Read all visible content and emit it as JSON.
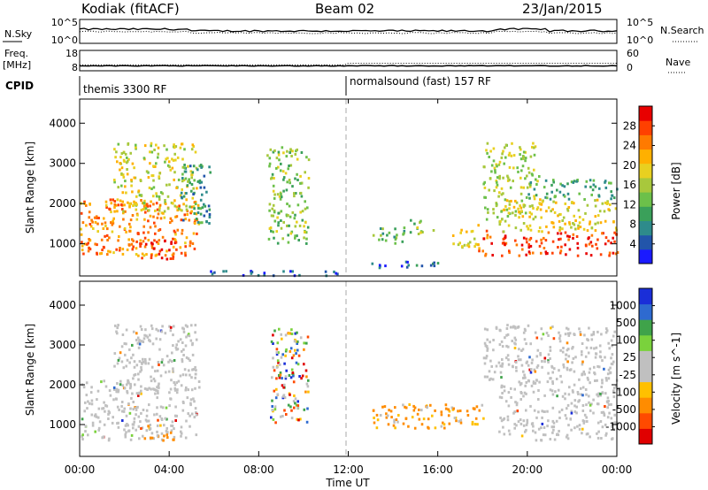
{
  "header": {
    "station": "Kodiak (fitACF)",
    "beam": "Beam 02",
    "date": "23/Jan/2015"
  },
  "noise_panel": {
    "left_label": "N.Sky",
    "right_label": "N.Search",
    "left_ticks": [
      "10^5",
      "10^0"
    ],
    "right_ticks": [
      "10^5",
      "10^0"
    ]
  },
  "freq_panel": {
    "left_label_1": "Freq.",
    "left_label_2": "[MHz]",
    "left_ticks": [
      "18",
      "8"
    ],
    "right_label": "Nave",
    "right_ticks": [
      "60",
      "0"
    ]
  },
  "cpid_panel": {
    "label": "CPID",
    "segments": [
      "themis 3300 RF",
      "normalsound (fast) 157 RF"
    ]
  },
  "x_axis": {
    "label": "Time UT",
    "tick_labels": [
      "00:00",
      "04:00",
      "08:00",
      "12:00",
      "16:00",
      "20:00",
      "00:00"
    ]
  },
  "chart_data": [
    {
      "type": "heatmap",
      "name": "Power",
      "ylabel": "Slant Range [km]",
      "yticks": [
        "1000",
        "2000",
        "3000",
        "4000"
      ],
      "ylim": [
        200,
        4600
      ],
      "xlim_hours": [
        0,
        24
      ],
      "colorbar": {
        "label": "Power [dB]",
        "ticks": [
          "4",
          "8",
          "12",
          "16",
          "20",
          "24",
          "28"
        ],
        "range": [
          0,
          30
        ],
        "colors": [
          "#1a1aff",
          "#2255aa",
          "#2e8b8b",
          "#3aa05a",
          "#6cc04a",
          "#a8c83c",
          "#e8d020",
          "#ffb000",
          "#ff7a00",
          "#ff4000",
          "#e80000"
        ]
      },
      "regions": [
        {
          "t": [
            0.0,
            5.3
          ],
          "r": [
            700,
            2100
          ],
          "level": 0.78
        },
        {
          "t": [
            1.5,
            5.2
          ],
          "r": [
            1800,
            3500
          ],
          "level": 0.55
        },
        {
          "t": [
            2.5,
            4.3
          ],
          "r": [
            600,
            1100
          ],
          "level": 0.95
        },
        {
          "t": [
            4.5,
            5.8
          ],
          "r": [
            1500,
            3000
          ],
          "level": 0.25
        },
        {
          "t": [
            8.3,
            10.2
          ],
          "r": [
            1000,
            3400
          ],
          "level": 0.45
        },
        {
          "t": [
            13.0,
            14.6
          ],
          "r": [
            1000,
            1400
          ],
          "level": 0.35
        },
        {
          "t": [
            14.5,
            15.8
          ],
          "r": [
            1200,
            1600
          ],
          "level": 0.45
        },
        {
          "t": [
            16.5,
            17.8
          ],
          "r": [
            900,
            1500
          ],
          "level": 0.6
        },
        {
          "t": [
            17.8,
            18.5
          ],
          "r": [
            700,
            1400
          ],
          "level": 0.85
        },
        {
          "t": [
            18.0,
            20.5
          ],
          "r": [
            1600,
            3500
          ],
          "level": 0.5
        },
        {
          "t": [
            18.7,
            24.0
          ],
          "r": [
            700,
            1300
          ],
          "level": 0.92
        },
        {
          "t": [
            18.7,
            24.0
          ],
          "r": [
            1300,
            2100
          ],
          "level": 0.6
        },
        {
          "t": [
            20.0,
            24.0
          ],
          "r": [
            2100,
            2600
          ],
          "level": 0.3
        },
        {
          "t": [
            13.0,
            16.0
          ],
          "r": [
            400,
            600
          ],
          "level": 0.15
        },
        {
          "t": [
            5.5,
            11.5
          ],
          "r": [
            200,
            320
          ],
          "level": 0.1
        }
      ]
    },
    {
      "type": "heatmap",
      "name": "Velocity",
      "ylabel": "Slant Range [km]",
      "yticks": [
        "1000",
        "2000",
        "3000",
        "4000"
      ],
      "ylim": [
        200,
        4600
      ],
      "xlim_hours": [
        0,
        24
      ],
      "colorbar": {
        "label": "Velocity [m s^-1]",
        "ticks": [
          "1000",
          "500",
          "100",
          "25",
          "-25",
          "-100",
          "-500",
          "-1000"
        ],
        "colors": [
          "#1a2ed8",
          "#2e6ad0",
          "#3fa34a",
          "#7ad23c",
          "#c0c0c0",
          "#c0c0c0",
          "#ffc000",
          "#ff8c00",
          "#ff4a00",
          "#e00000"
        ]
      },
      "regions": [
        {
          "t": [
            0.0,
            5.3
          ],
          "r": [
            600,
            2100
          ],
          "level": "ground"
        },
        {
          "t": [
            1.5,
            5.2
          ],
          "r": [
            1800,
            3500
          ],
          "level": "ground"
        },
        {
          "t": [
            2.8,
            4.3
          ],
          "r": [
            600,
            1000
          ],
          "level": "negative"
        },
        {
          "t": [
            13.0,
            16.5
          ],
          "r": [
            900,
            1500
          ],
          "level": "negative"
        },
        {
          "t": [
            16.5,
            18.0
          ],
          "r": [
            1000,
            1500
          ],
          "level": "negative"
        },
        {
          "t": [
            18.7,
            24.0
          ],
          "r": [
            600,
            2100
          ],
          "level": "ground"
        },
        {
          "t": [
            18.0,
            24.0
          ],
          "r": [
            2100,
            3500
          ],
          "level": "ground"
        },
        {
          "t": [
            8.5,
            10.2
          ],
          "r": [
            1000,
            3400
          ],
          "level": "mixed"
        }
      ]
    }
  ]
}
